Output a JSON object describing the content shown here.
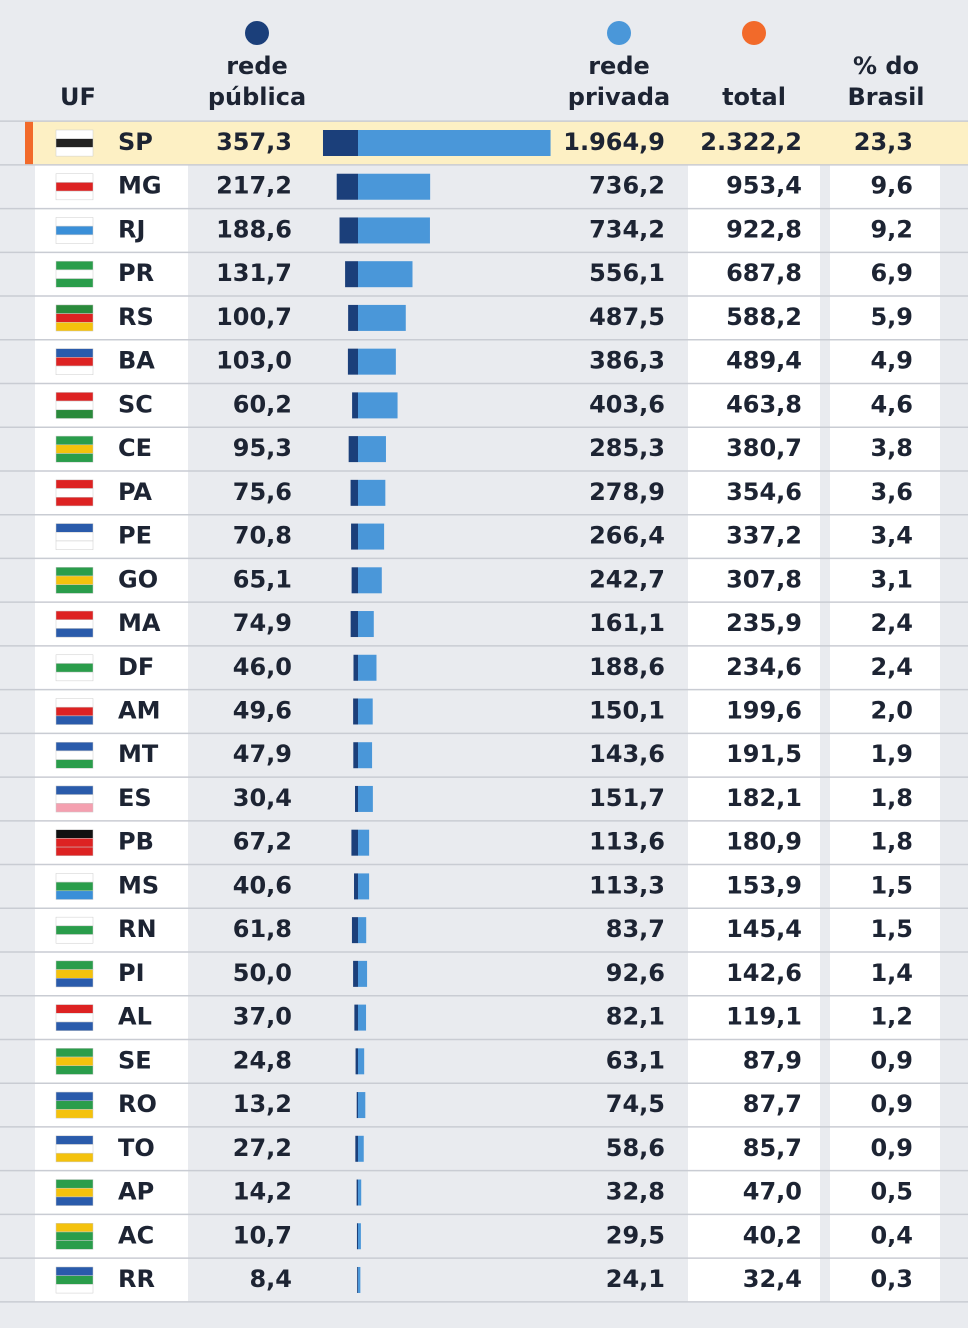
{
  "header": {
    "uf": "UF",
    "public": [
      "rede",
      "pública"
    ],
    "private": [
      "rede",
      "privada"
    ],
    "total": "total",
    "pct": [
      "% do",
      "Brasil"
    ]
  },
  "colors": {
    "public": "#1b3f7a",
    "private": "#4a97d9",
    "total": "#f26a2a"
  },
  "rows": [
    {
      "uf": "SP",
      "public": {
        "value": 357.3,
        "label": "357,3"
      },
      "private": {
        "value": 1964.9,
        "label": "1.964,9"
      },
      "total": "2.322,2",
      "pct": "23,3"
    },
    {
      "uf": "MG",
      "public": {
        "value": 217.2,
        "label": "217,2"
      },
      "private": {
        "value": 736.2,
        "label": "736,2"
      },
      "total": "953,4",
      "pct": "9,6"
    },
    {
      "uf": "RJ",
      "public": {
        "value": 188.6,
        "label": "188,6"
      },
      "private": {
        "value": 734.2,
        "label": "734,2"
      },
      "total": "922,8",
      "pct": "9,2"
    },
    {
      "uf": "PR",
      "public": {
        "value": 131.7,
        "label": "131,7"
      },
      "private": {
        "value": 556.1,
        "label": "556,1"
      },
      "total": "687,8",
      "pct": "6,9"
    },
    {
      "uf": "RS",
      "public": {
        "value": 100.7,
        "label": "100,7"
      },
      "private": {
        "value": 487.5,
        "label": "487,5"
      },
      "total": "588,2",
      "pct": "5,9"
    },
    {
      "uf": "BA",
      "public": {
        "value": 103.0,
        "label": "103,0"
      },
      "private": {
        "value": 386.3,
        "label": "386,3"
      },
      "total": "489,4",
      "pct": "4,9"
    },
    {
      "uf": "SC",
      "public": {
        "value": 60.2,
        "label": "60,2"
      },
      "private": {
        "value": 403.6,
        "label": "403,6"
      },
      "total": "463,8",
      "pct": "4,6"
    },
    {
      "uf": "CE",
      "public": {
        "value": 95.3,
        "label": "95,3"
      },
      "private": {
        "value": 285.3,
        "label": "285,3"
      },
      "total": "380,7",
      "pct": "3,8"
    },
    {
      "uf": "PA",
      "public": {
        "value": 75.6,
        "label": "75,6"
      },
      "private": {
        "value": 278.9,
        "label": "278,9"
      },
      "total": "354,6",
      "pct": "3,6"
    },
    {
      "uf": "PE",
      "public": {
        "value": 70.8,
        "label": "70,8"
      },
      "private": {
        "value": 266.4,
        "label": "266,4"
      },
      "total": "337,2",
      "pct": "3,4"
    },
    {
      "uf": "GO",
      "public": {
        "value": 65.1,
        "label": "65,1"
      },
      "private": {
        "value": 242.7,
        "label": "242,7"
      },
      "total": "307,8",
      "pct": "3,1"
    },
    {
      "uf": "MA",
      "public": {
        "value": 74.9,
        "label": "74,9"
      },
      "private": {
        "value": 161.1,
        "label": "161,1"
      },
      "total": "235,9",
      "pct": "2,4"
    },
    {
      "uf": "DF",
      "public": {
        "value": 46.0,
        "label": "46,0"
      },
      "private": {
        "value": 188.6,
        "label": "188,6"
      },
      "total": "234,6",
      "pct": "2,4"
    },
    {
      "uf": "AM",
      "public": {
        "value": 49.6,
        "label": "49,6"
      },
      "private": {
        "value": 150.1,
        "label": "150,1"
      },
      "total": "199,6",
      "pct": "2,0"
    },
    {
      "uf": "MT",
      "public": {
        "value": 47.9,
        "label": "47,9"
      },
      "private": {
        "value": 143.6,
        "label": "143,6"
      },
      "total": "191,5",
      "pct": "1,9"
    },
    {
      "uf": "ES",
      "public": {
        "value": 30.4,
        "label": "30,4"
      },
      "private": {
        "value": 151.7,
        "label": "151,7"
      },
      "total": "182,1",
      "pct": "1,8"
    },
    {
      "uf": "PB",
      "public": {
        "value": 67.2,
        "label": "67,2"
      },
      "private": {
        "value": 113.6,
        "label": "113,6"
      },
      "total": "180,9",
      "pct": "1,8"
    },
    {
      "uf": "MS",
      "public": {
        "value": 40.6,
        "label": "40,6"
      },
      "private": {
        "value": 113.3,
        "label": "113,3"
      },
      "total": "153,9",
      "pct": "1,5"
    },
    {
      "uf": "RN",
      "public": {
        "value": 61.8,
        "label": "61,8"
      },
      "private": {
        "value": 83.7,
        "label": "83,7"
      },
      "total": "145,4",
      "pct": "1,5"
    },
    {
      "uf": "PI",
      "public": {
        "value": 50.0,
        "label": "50,0"
      },
      "private": {
        "value": 92.6,
        "label": "92,6"
      },
      "total": "142,6",
      "pct": "1,4"
    },
    {
      "uf": "AL",
      "public": {
        "value": 37.0,
        "label": "37,0"
      },
      "private": {
        "value": 82.1,
        "label": "82,1"
      },
      "total": "119,1",
      "pct": "1,2"
    },
    {
      "uf": "SE",
      "public": {
        "value": 24.8,
        "label": "24,8"
      },
      "private": {
        "value": 63.1,
        "label": "63,1"
      },
      "total": "87,9",
      "pct": "0,9"
    },
    {
      "uf": "RO",
      "public": {
        "value": 13.2,
        "label": "13,2"
      },
      "private": {
        "value": 74.5,
        "label": "74,5"
      },
      "total": "87,7",
      "pct": "0,9"
    },
    {
      "uf": "TO",
      "public": {
        "value": 27.2,
        "label": "27,2"
      },
      "private": {
        "value": 58.6,
        "label": "58,6"
      },
      "total": "85,7",
      "pct": "0,9"
    },
    {
      "uf": "AP",
      "public": {
        "value": 14.2,
        "label": "14,2"
      },
      "private": {
        "value": 32.8,
        "label": "32,8"
      },
      "total": "47,0",
      "pct": "0,5"
    },
    {
      "uf": "AC",
      "public": {
        "value": 10.7,
        "label": "10,7"
      },
      "private": {
        "value": 29.5,
        "label": "29,5"
      },
      "total": "40,2",
      "pct": "0,4"
    },
    {
      "uf": "RR",
      "public": {
        "value": 8.4,
        "label": "8,4"
      },
      "private": {
        "value": 24.1,
        "label": "24,1"
      },
      "total": "32,4",
      "pct": "0,3"
    }
  ]
}
